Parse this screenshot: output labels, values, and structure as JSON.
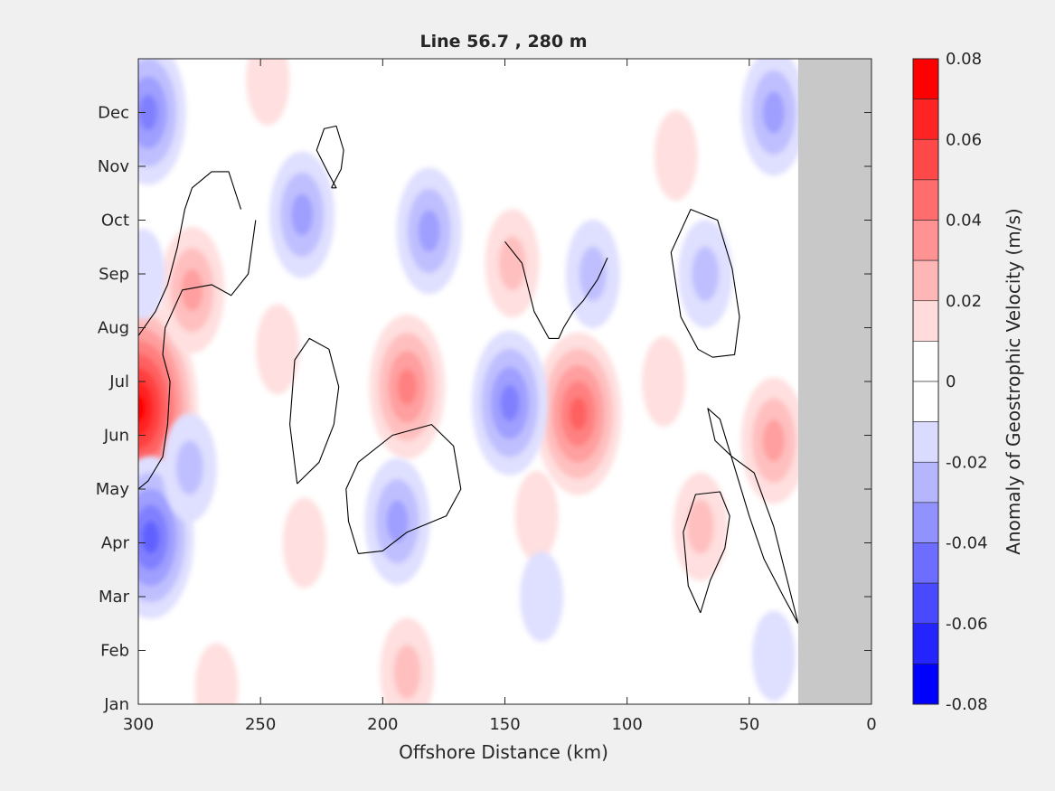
{
  "chart_data": {
    "type": "heatmap",
    "title": "Line 56.7 , 280 m",
    "xlabel": "Offshore Distance (km)",
    "ylabel": "",
    "x_ticks": [
      300,
      250,
      200,
      150,
      100,
      50,
      0
    ],
    "xlim": [
      300,
      0
    ],
    "y_ticks": [
      "Jan",
      "Feb",
      "Mar",
      "Apr",
      "May",
      "Jun",
      "Jul",
      "Aug",
      "Sep",
      "Oct",
      "Nov",
      "Dec"
    ],
    "colorbar": {
      "label": "Anomaly of Geostrophic Velocity (m/s)",
      "range": [
        -0.08,
        0.08
      ],
      "tick_labels": [
        "0.08",
        "0.06",
        "0.04",
        "0.02",
        "0",
        "-0.02",
        "-0.04",
        "-0.06",
        "-0.08"
      ],
      "levels": 16,
      "negative_color": "#0000ff",
      "positive_color": "#ff0000",
      "zero_color": "#ffffff"
    },
    "land_mask": {
      "x_range_km": [
        30,
        0
      ],
      "color": "#c8c8c8"
    },
    "anomalies": [
      {
        "x": 300,
        "month": 5.5,
        "value": 0.08
      },
      {
        "x": 278,
        "month": 7.7,
        "value": 0.025
      },
      {
        "x": 243,
        "month": 6.6,
        "value": 0.012
      },
      {
        "x": 190,
        "month": 5.9,
        "value": 0.035
      },
      {
        "x": 120,
        "month": 5.4,
        "value": 0.045
      },
      {
        "x": 40,
        "month": 4.9,
        "value": 0.03
      },
      {
        "x": 70,
        "month": 3.3,
        "value": 0.02
      },
      {
        "x": 137,
        "month": 3.5,
        "value": 0.013
      },
      {
        "x": 232,
        "month": 3.0,
        "value": 0.012
      },
      {
        "x": 190,
        "month": 0.6,
        "value": 0.015
      },
      {
        "x": 268,
        "month": 0.3,
        "value": 0.012
      },
      {
        "x": 147,
        "month": 8.2,
        "value": 0.018
      },
      {
        "x": 80,
        "month": 10.2,
        "value": 0.012
      },
      {
        "x": 85,
        "month": 6.0,
        "value": 0.01
      },
      {
        "x": 247,
        "month": 11.6,
        "value": 0.01
      },
      {
        "x": 296,
        "month": 11.0,
        "value": -0.04
      },
      {
        "x": 295,
        "month": 3.1,
        "value": -0.048
      },
      {
        "x": 279,
        "month": 4.4,
        "value": -0.02
      },
      {
        "x": 233,
        "month": 9.1,
        "value": -0.028
      },
      {
        "x": 181,
        "month": 8.8,
        "value": -0.03
      },
      {
        "x": 194,
        "month": 3.4,
        "value": -0.032
      },
      {
        "x": 148,
        "month": 5.6,
        "value": -0.04
      },
      {
        "x": 114,
        "month": 8.0,
        "value": -0.018
      },
      {
        "x": 68,
        "month": 8.0,
        "value": -0.015
      },
      {
        "x": 40,
        "month": 11.0,
        "value": -0.03
      },
      {
        "x": 135,
        "month": 2.0,
        "value": -0.01
      },
      {
        "x": 40,
        "month": 0.9,
        "value": -0.01
      },
      {
        "x": 298,
        "month": 8.0,
        "value": -0.01
      }
    ],
    "zero_contours": [
      {
        "x": [
          300,
          296,
          290,
          288,
          287,
          290,
          289,
          282,
          270,
          262,
          255,
          252
        ],
        "month": [
          4.0,
          4.15,
          4.6,
          5.2,
          6.0,
          6.5,
          7.0,
          7.7,
          7.8,
          7.6,
          8.0,
          9.0
        ]
      },
      {
        "x": [
          300,
          293,
          288,
          284,
          281,
          278,
          270,
          263,
          258
        ],
        "month": [
          6.85,
          7.3,
          7.8,
          8.5,
          9.2,
          9.6,
          9.9,
          9.9,
          9.2
        ]
      },
      {
        "x": [
          221,
          217,
          216,
          219,
          224,
          227,
          222,
          219,
          221
        ],
        "month": [
          9.6,
          9.95,
          10.3,
          10.75,
          10.7,
          10.3,
          9.85,
          9.6,
          9.6
        ]
      },
      {
        "x": [
          235,
          226,
          220,
          218,
          222,
          230,
          236,
          238,
          235
        ],
        "month": [
          4.1,
          4.5,
          5.2,
          5.9,
          6.6,
          6.8,
          6.4,
          5.2,
          4.1
        ]
      },
      {
        "x": [
          210,
          200,
          190,
          174,
          168,
          171,
          180,
          196,
          210,
          215,
          214,
          210
        ],
        "month": [
          2.8,
          2.85,
          3.2,
          3.5,
          4.0,
          4.8,
          5.2,
          5.0,
          4.5,
          4.0,
          3.4,
          2.8
        ]
      },
      {
        "x": [
          150,
          143,
          138,
          132,
          128,
          126,
          122,
          118,
          115,
          112,
          108
        ],
        "month": [
          8.6,
          8.2,
          7.3,
          6.8,
          6.8,
          7.0,
          7.3,
          7.5,
          7.7,
          7.9,
          8.3
        ]
      },
      {
        "x": [
          65,
          56,
          54,
          57,
          63,
          74,
          82,
          78,
          71,
          65
        ],
        "month": [
          6.45,
          6.5,
          7.2,
          8.1,
          9.0,
          9.2,
          8.4,
          7.2,
          6.6,
          6.45
        ]
      },
      {
        "x": [
          70,
          66,
          60,
          58,
          62,
          72,
          77,
          75,
          70
        ],
        "month": [
          1.7,
          2.3,
          2.9,
          3.5,
          3.95,
          3.9,
          3.2,
          2.2,
          1.7
        ]
      },
      {
        "x": [
          30,
          36,
          44,
          50,
          56,
          62,
          67,
          64,
          57,
          48,
          40,
          30
        ],
        "month": [
          1.5,
          2.0,
          2.7,
          3.5,
          4.4,
          5.3,
          5.5,
          4.9,
          4.6,
          4.3,
          3.3,
          1.5
        ]
      }
    ]
  }
}
